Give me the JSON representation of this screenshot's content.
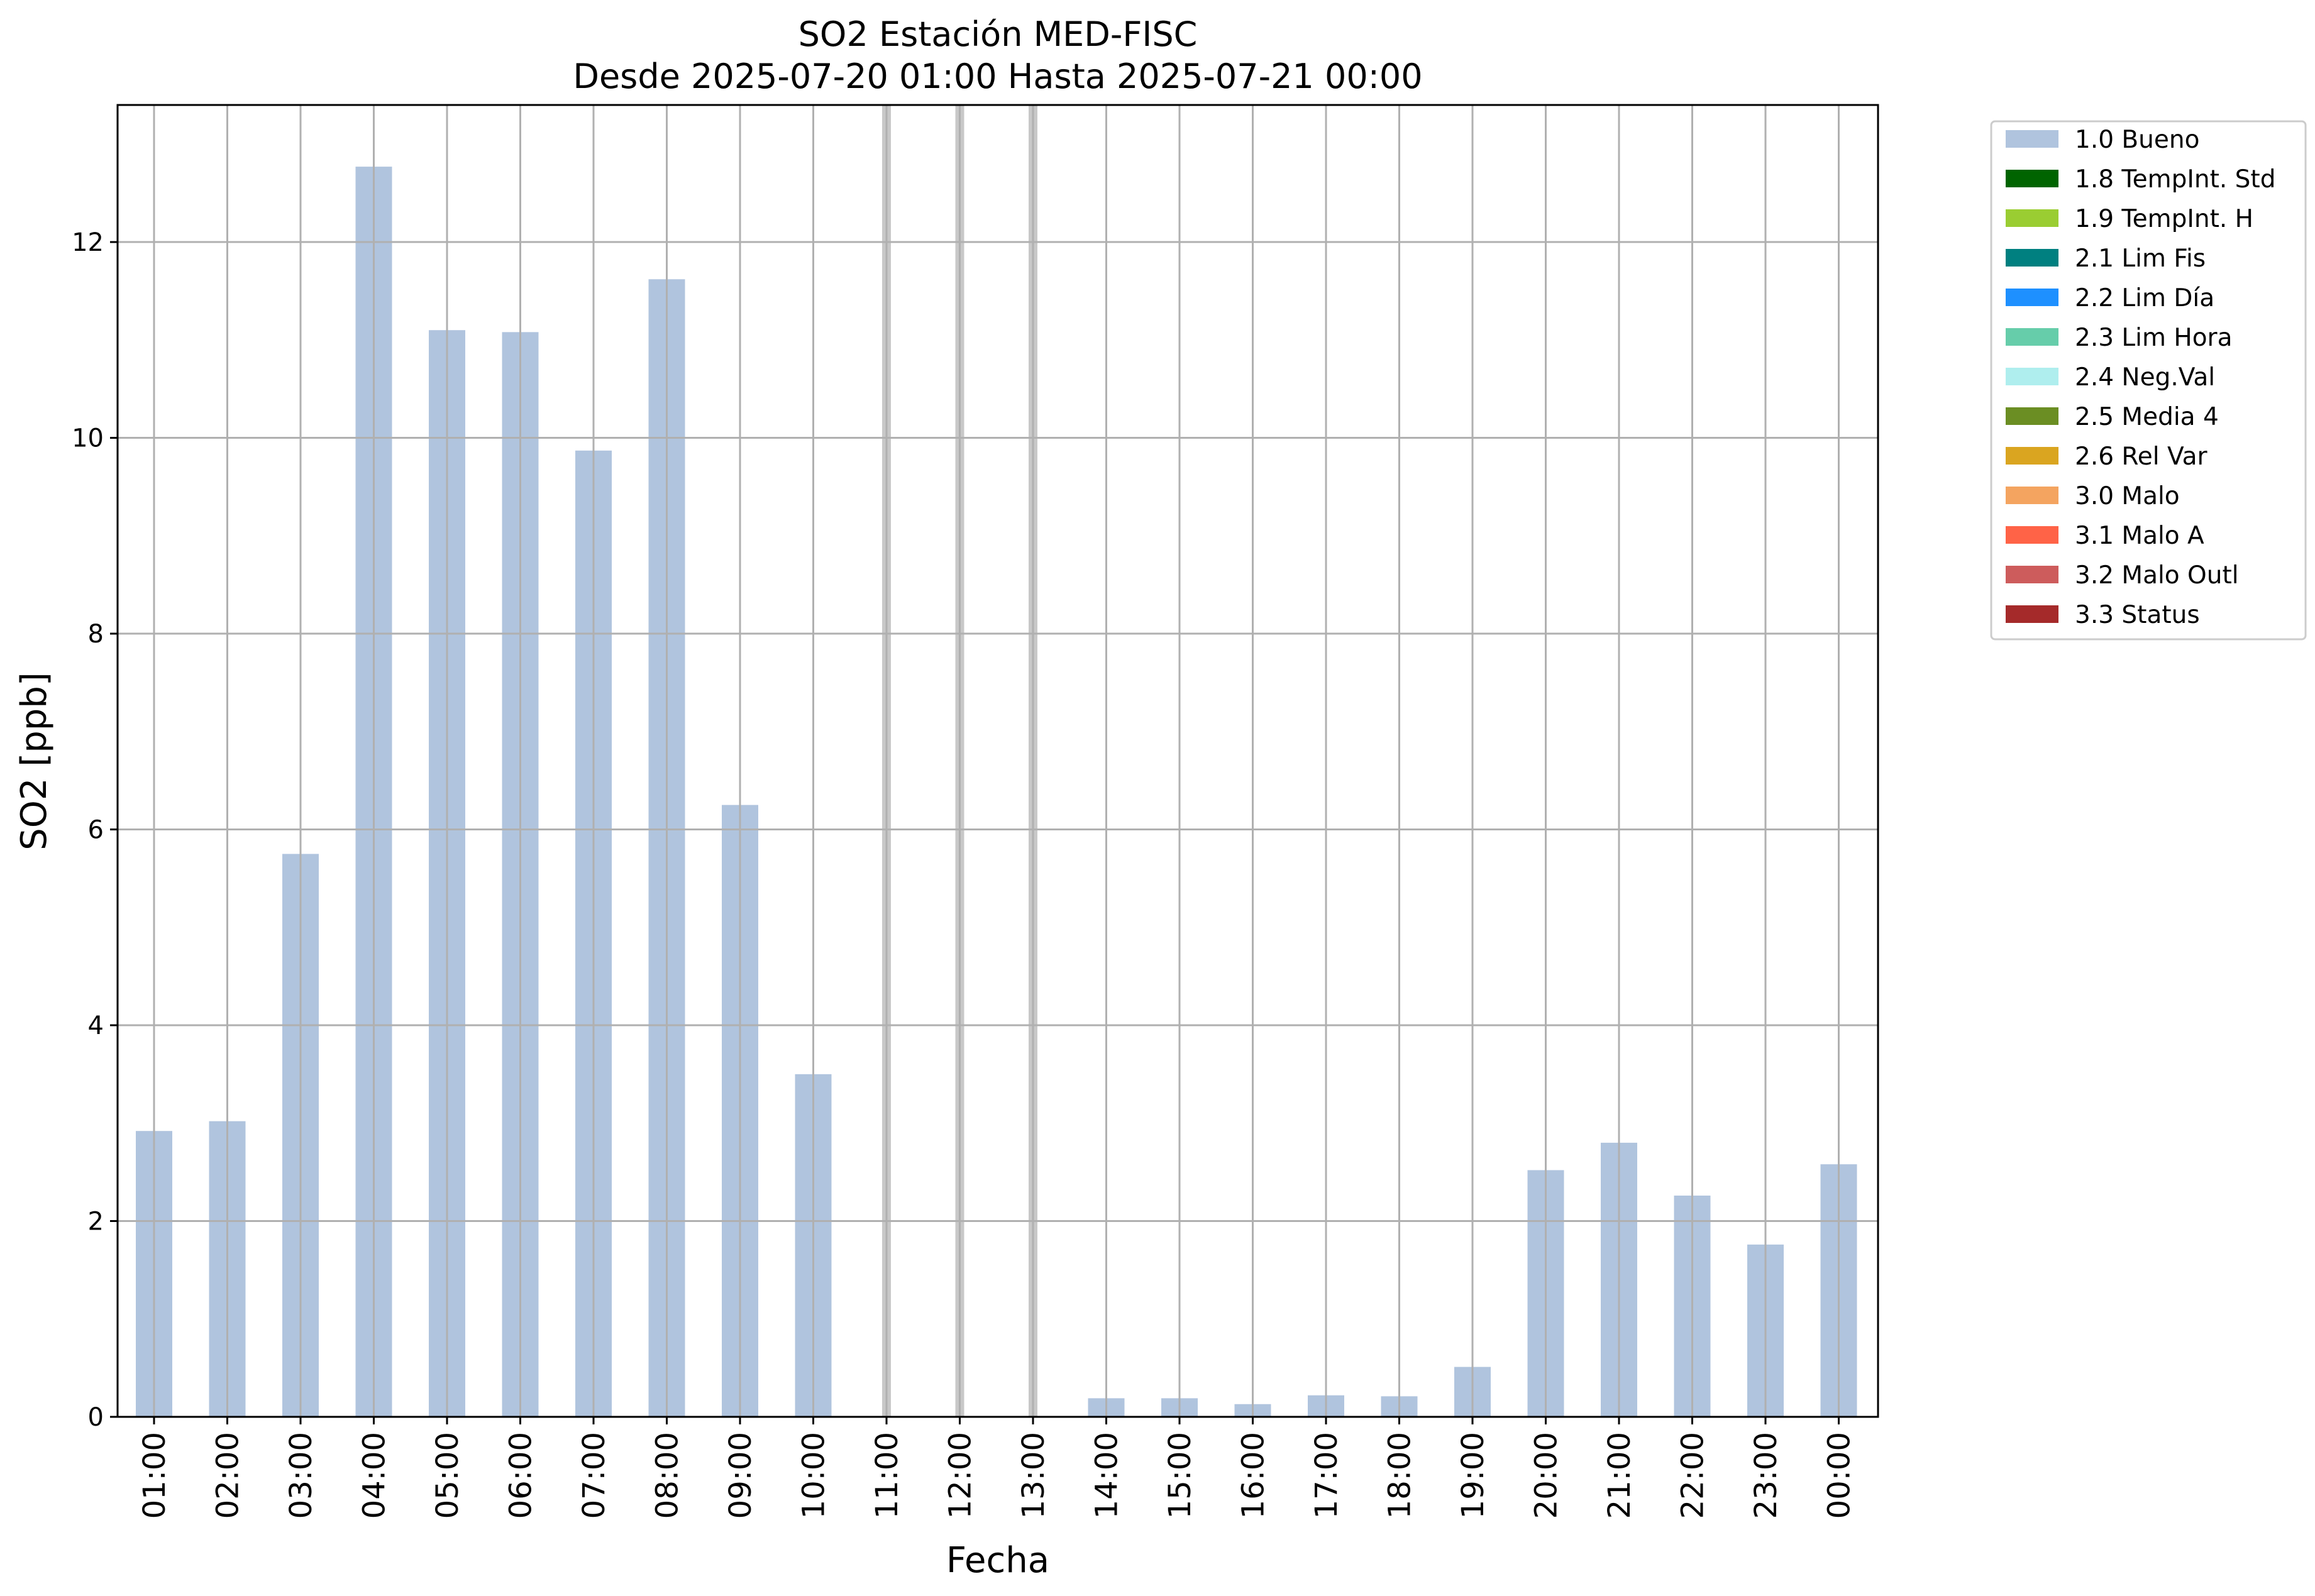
{
  "chart_data": {
    "type": "bar",
    "title": "SO2 Estación MED-FISC",
    "subtitle": "Desde 2025-07-20 01:00 Hasta 2025-07-21 00:00",
    "xlabel": "Fecha",
    "ylabel": "SO2 [ppb]",
    "ylim": [
      0,
      13.4
    ],
    "yticks": [
      0,
      2,
      4,
      6,
      8,
      10,
      12
    ],
    "grid": true,
    "legend_position": "outside-top-right",
    "categories": [
      "01:00",
      "02:00",
      "03:00",
      "04:00",
      "05:00",
      "06:00",
      "07:00",
      "08:00",
      "09:00",
      "10:00",
      "11:00",
      "12:00",
      "13:00",
      "14:00",
      "15:00",
      "16:00",
      "17:00",
      "18:00",
      "19:00",
      "20:00",
      "21:00",
      "22:00",
      "23:00",
      "00:00"
    ],
    "series": [
      {
        "name": "1.0 Bueno",
        "color": "#b0c4de",
        "values": [
          2.92,
          3.02,
          5.75,
          12.77,
          11.1,
          11.08,
          9.87,
          11.62,
          6.25,
          3.5,
          null,
          null,
          null,
          0.19,
          0.19,
          0.13,
          0.22,
          0.21,
          0.51,
          2.52,
          2.8,
          2.26,
          1.76,
          2.58
        ]
      }
    ],
    "missing_markers": [
      "11:00",
      "12:00",
      "13:00"
    ],
    "missing_marker_color": "#c8c8c8",
    "legend": [
      {
        "label": "1.0 Bueno",
        "color": "#b0c4de"
      },
      {
        "label": "1.8 TempInt. Std",
        "color": "#006400"
      },
      {
        "label": "1.9 TempInt. H",
        "color": "#9acd32"
      },
      {
        "label": "2.1 Lim Fis",
        "color": "#008080"
      },
      {
        "label": "2.2 Lim Día",
        "color": "#1e90ff"
      },
      {
        "label": "2.3 Lim Hora",
        "color": "#66cdaa"
      },
      {
        "label": "2.4 Neg.Val",
        "color": "#afeeee"
      },
      {
        "label": "2.5 Media 4",
        "color": "#6b8e23"
      },
      {
        "label": "2.6 Rel Var",
        "color": "#daa520"
      },
      {
        "label": "3.0 Malo",
        "color": "#f4a460"
      },
      {
        "label": "3.1 Malo A",
        "color": "#ff6347"
      },
      {
        "label": "3.2 Malo Outl",
        "color": "#cd5c5c"
      },
      {
        "label": "3.3 Status",
        "color": "#a52a2a"
      }
    ]
  }
}
